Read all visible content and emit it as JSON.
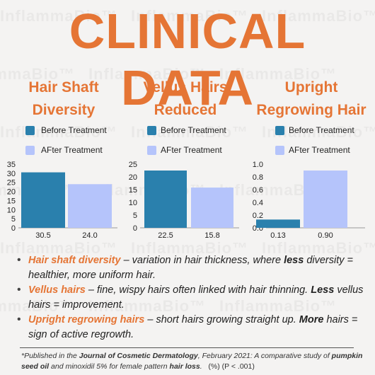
{
  "title": "CLINICAL DATA",
  "watermark": "InflammaBio™",
  "colors": {
    "accent": "#e57535",
    "before": "#2a80ad",
    "after": "#b5c4fb"
  },
  "legend": {
    "before": "Before Treatment",
    "after": "AFter Treatment"
  },
  "chart_data": [
    {
      "type": "bar",
      "title": "Hair Shaft Diversity",
      "title_lines": [
        "Hair Shaft",
        "Diversity"
      ],
      "categories": [
        "Before Treatment",
        "AFter Treatment"
      ],
      "values": [
        30.5,
        24.0
      ],
      "value_labels": [
        "30.5",
        "24.0"
      ],
      "ylim": [
        0,
        35
      ],
      "yticks": [
        "0",
        "5",
        "10",
        "15",
        "20",
        "25",
        "30",
        "35"
      ],
      "ytick_values": [
        0,
        5,
        10,
        15,
        20,
        25,
        30,
        35
      ]
    },
    {
      "type": "bar",
      "title": "Vellus Hairs Reduced",
      "title_lines": [
        "Vellus Hairs",
        "Reduced"
      ],
      "categories": [
        "Before Treatment",
        "AFter Treatment"
      ],
      "values": [
        22.5,
        15.8
      ],
      "value_labels": [
        "22.5",
        "15.8"
      ],
      "ylim": [
        0,
        25
      ],
      "yticks": [
        "0",
        "5",
        "10",
        "15",
        "20",
        "25"
      ],
      "ytick_values": [
        0,
        5,
        10,
        15,
        20,
        25
      ]
    },
    {
      "type": "bar",
      "title": "Upright Regrowing Hair",
      "title_lines": [
        "Upright",
        "Regrowing Hair"
      ],
      "categories": [
        "Before Treatment",
        "AFter Treatment"
      ],
      "values": [
        0.13,
        0.9
      ],
      "value_labels": [
        "0.13",
        "0.90"
      ],
      "ylim": [
        0,
        1.0
      ],
      "yticks": [
        "0.0",
        "0.2",
        "0.4",
        "0.6",
        "0.8",
        "1.0"
      ],
      "ytick_values": [
        0,
        0.2,
        0.4,
        0.6,
        0.8,
        1.0
      ]
    }
  ],
  "notes": [
    {
      "term": "Hair shaft diversity",
      "pre": " – variation in hair thickness, where ",
      "bold": "less",
      "post": " diversity = healthier, more uniform hair."
    },
    {
      "term": "Vellus hairs",
      "pre": " – fine, wispy hairs often linked with hair thinning. ",
      "bold": "Less",
      "post": " vellus hairs = improvement."
    },
    {
      "term": "Upright regrowing hairs",
      "pre": " – short hairs growing straight up. ",
      "bold": "More",
      "post": " hairs = sign of active regrowth."
    }
  ],
  "footnote": {
    "p1": "*Published in the ",
    "journal": "Journal of Cosmetic Dermatology",
    "p2": ", February 2021: A comparative study of ",
    "oil": "pumpkin seed oil",
    "p3": " and minoxidil 5% for female pattern ",
    "loss": "hair loss",
    "p4": ".",
    "stat": "(%) (P < .001)"
  }
}
